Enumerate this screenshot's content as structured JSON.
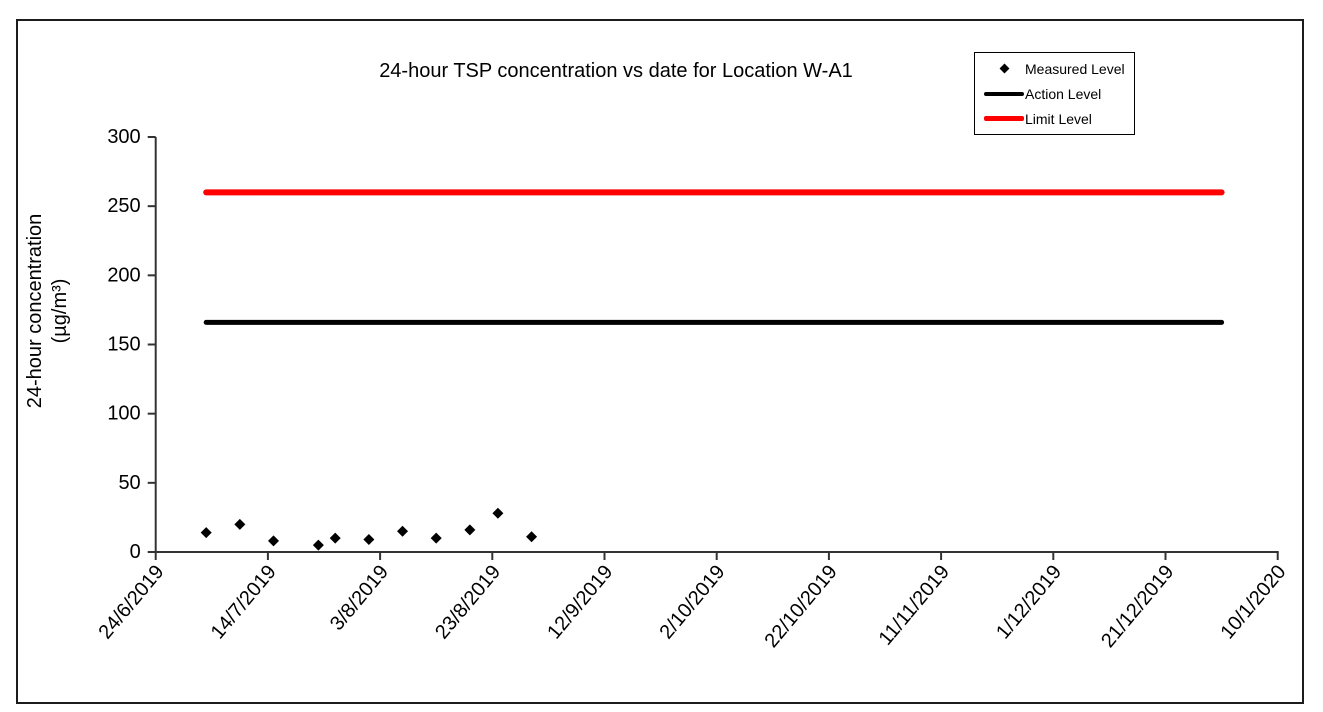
{
  "title": "24-hour TSP concentration vs date for Location W-A1",
  "y_axis": {
    "label_line1": "24-hour concentration",
    "label_line2": "(µg/m³)"
  },
  "legend": {
    "items": [
      {
        "label": "Measured Level",
        "marker": "diamond",
        "color": "#000000"
      },
      {
        "label": "Action Level",
        "marker": "line",
        "color": "#000000"
      },
      {
        "label": "Limit Level",
        "marker": "line",
        "color": "#ff0000"
      }
    ]
  },
  "chart_data": {
    "type": "scatter",
    "title": "24-hour TSP concentration vs date for Location W-A1",
    "xlabel": "",
    "ylabel": "24-hour concentration (µg/m³)",
    "ylim": [
      0,
      300
    ],
    "y_ticks": [
      0,
      50,
      100,
      150,
      200,
      250,
      300
    ],
    "x_tick_labels": [
      "24/6/2019",
      "14/7/2019",
      "3/8/2019",
      "23/8/2019",
      "12/9/2019",
      "2/10/2019",
      "22/10/2019",
      "11/11/2019",
      "1/12/2019",
      "21/12/2019",
      "10/1/2020"
    ],
    "x_tick_interval_days": 20,
    "x_origin_date": "24/6/2019",
    "grid": false,
    "legend_position": "top-right",
    "series": [
      {
        "name": "Measured Level",
        "type": "scatter",
        "marker": "diamond",
        "color": "#000000",
        "points": [
          {
            "date": "3/7/2019",
            "day_offset": 9,
            "value": 14
          },
          {
            "date": "9/7/2019",
            "day_offset": 15,
            "value": 20
          },
          {
            "date": "15/7/2019",
            "day_offset": 21,
            "value": 8
          },
          {
            "date": "23/7/2019",
            "day_offset": 29,
            "value": 5
          },
          {
            "date": "26/7/2019",
            "day_offset": 32,
            "value": 10
          },
          {
            "date": "1/8/2019",
            "day_offset": 38,
            "value": 9
          },
          {
            "date": "7/8/2019",
            "day_offset": 44,
            "value": 15
          },
          {
            "date": "13/8/2019",
            "day_offset": 50,
            "value": 10
          },
          {
            "date": "19/8/2019",
            "day_offset": 56,
            "value": 16
          },
          {
            "date": "24/8/2019",
            "day_offset": 61,
            "value": 28
          },
          {
            "date": "30/8/2019",
            "day_offset": 67,
            "value": 11
          }
        ]
      },
      {
        "name": "Action Level",
        "type": "hline",
        "color": "#000000",
        "value": 166,
        "day_start": 9,
        "day_end": 190
      },
      {
        "name": "Limit Level",
        "type": "hline",
        "color": "#ff0000",
        "value": 260,
        "day_start": 9,
        "day_end": 190
      }
    ]
  }
}
